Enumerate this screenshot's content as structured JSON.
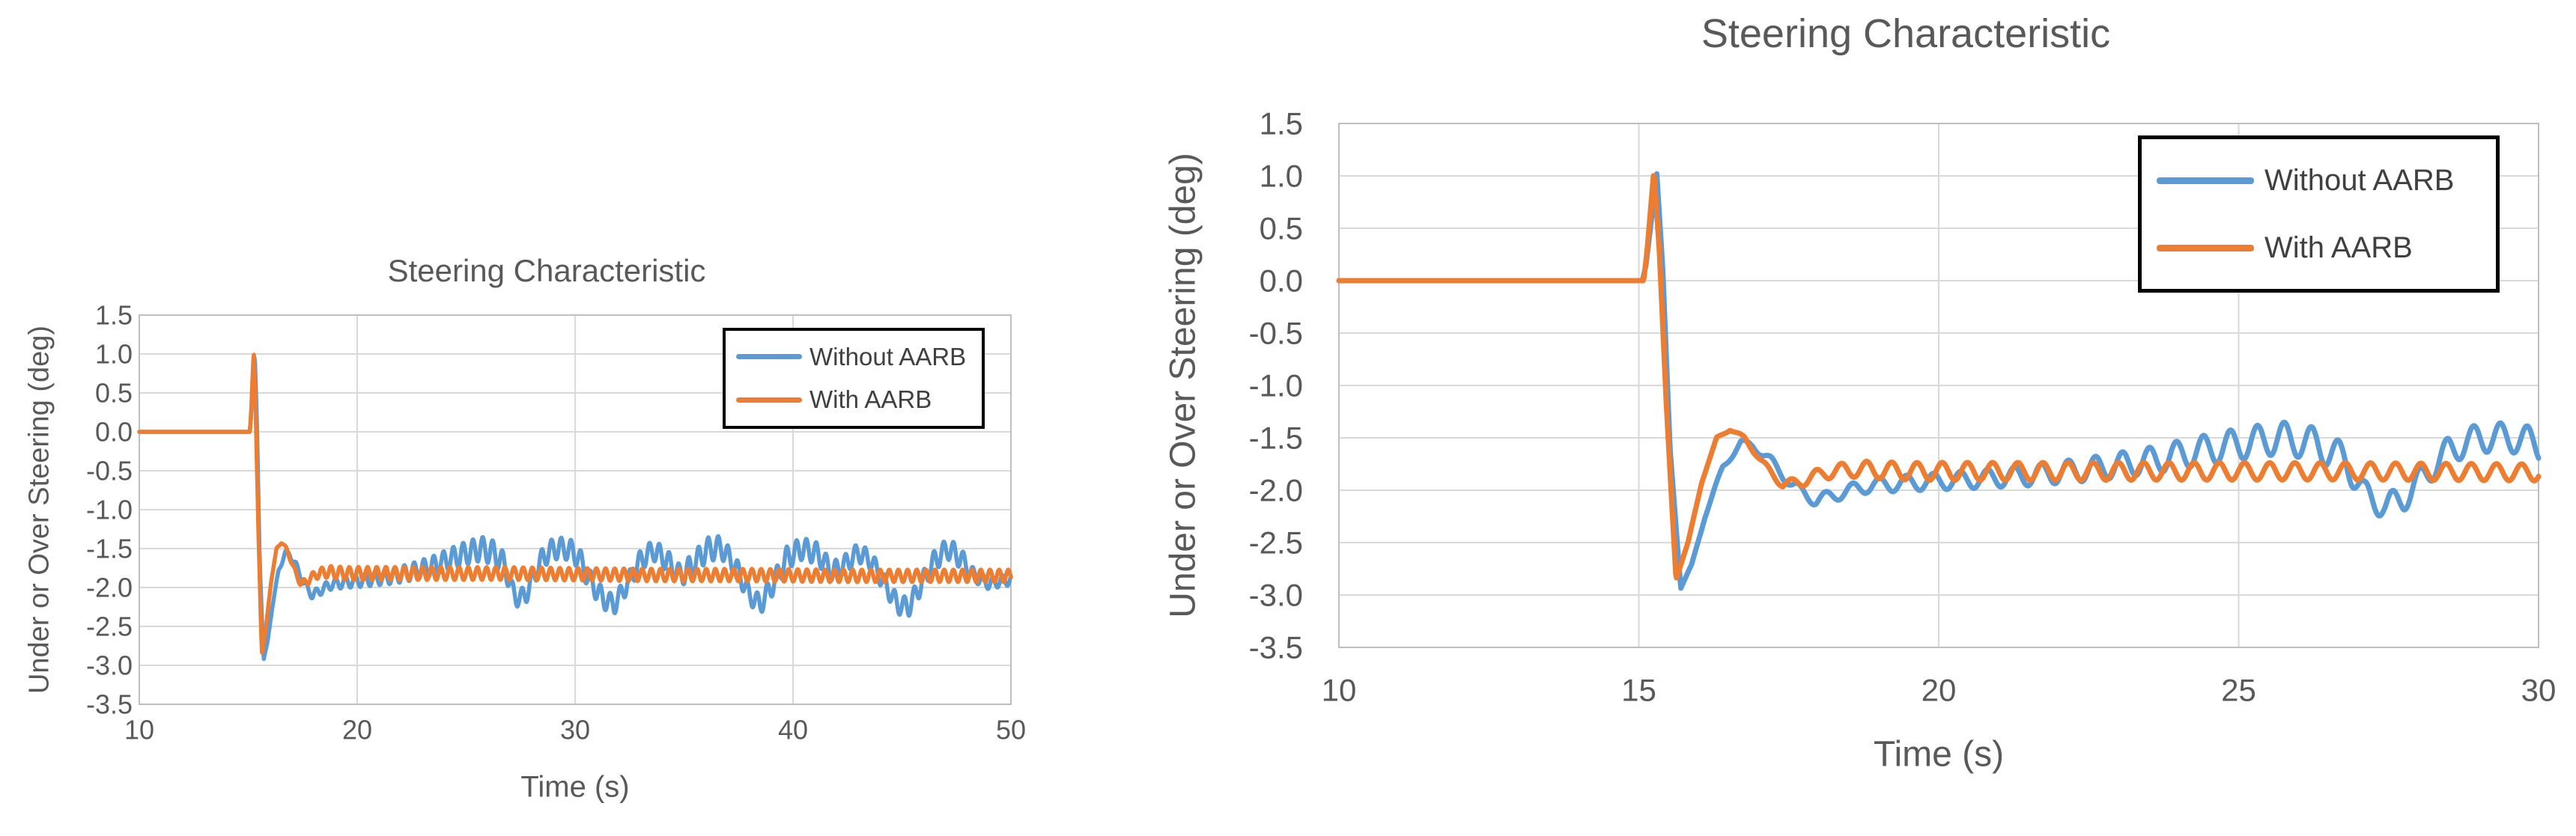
{
  "page": {
    "background": "#FFFFFF"
  },
  "colors": {
    "grid": "#D9D9D9",
    "plot_border": "#BFBFBF",
    "tick_text": "#595959",
    "title_text": "#595959",
    "legend_text": "#404040",
    "legend_border": "#000000",
    "series_blue": "#5B9BD5",
    "series_orange": "#ED7D31"
  },
  "chart_data": {
    "charts": [
      {
        "type": "line",
        "title": "Steering Characteristic",
        "xlabel": "Time (s)",
        "ylabel": "Under or Over Steering (deg)",
        "xlim": [
          10,
          50
        ],
        "ylim": [
          -3.5,
          1.5
        ],
        "xticks": [
          "10",
          "20",
          "30",
          "40",
          "50"
        ],
        "yticks": [
          "1.5",
          "1.0",
          "0.5",
          "0.0",
          "-0.5",
          "-1.0",
          "-1.5",
          "-2.0",
          "-2.5",
          "-3.0",
          "-3.5"
        ],
        "grid": true,
        "legend": {
          "position": "upper-right-inside",
          "entries": [
            "Without AARB",
            "With AARB"
          ]
        }
      },
      {
        "type": "line",
        "title": "Steering Characteristic",
        "xlabel": "Time (s)",
        "ylabel": "Under or Over Steering (deg)",
        "xlim": [
          10,
          30
        ],
        "ylim": [
          -3.5,
          1.5
        ],
        "xticks": [
          "10",
          "15",
          "20",
          "25",
          "30"
        ],
        "yticks": [
          "1.5",
          "1.0",
          "0.5",
          "0.0",
          "-0.5",
          "-1.0",
          "-1.5",
          "-2.0",
          "-2.5",
          "-3.0",
          "-3.5"
        ],
        "grid": true,
        "legend": {
          "position": "upper-right-inside",
          "entries": [
            "Without AARB",
            "With AARB"
          ]
        }
      }
    ],
    "series": [
      {
        "name": "Without AARB",
        "color": "#5B9BD5",
        "baseline": [
          [
            10,
            0
          ],
          [
            15.06,
            0
          ],
          [
            15.12,
            0.15
          ],
          [
            15.3,
            1.02
          ],
          [
            15.4,
            0.1
          ],
          [
            15.52,
            -1.6
          ],
          [
            15.7,
            -2.93
          ],
          [
            15.88,
            -2.72
          ],
          [
            16.1,
            -2.25
          ],
          [
            16.4,
            -1.78
          ],
          [
            16.7,
            -1.55
          ],
          [
            16.9,
            -1.57
          ],
          [
            17.2,
            -1.72
          ],
          [
            17.55,
            -1.95
          ],
          [
            17.95,
            -2.1
          ],
          [
            18.35,
            -2.03
          ],
          [
            18.8,
            -1.96
          ],
          [
            19.5,
            -1.93
          ],
          [
            20.5,
            -1.9
          ],
          [
            21.5,
            -1.86
          ],
          [
            22.5,
            -1.8
          ],
          [
            23.5,
            -1.72
          ],
          [
            24.3,
            -1.63
          ],
          [
            25.0,
            -1.56
          ],
          [
            25.7,
            -1.5
          ],
          [
            26.3,
            -1.56
          ],
          [
            26.8,
            -1.72
          ],
          [
            27.1,
            -2.05
          ],
          [
            27.45,
            -2.15
          ],
          [
            27.75,
            -2.08
          ],
          [
            28.1,
            -1.86
          ],
          [
            28.5,
            -1.62
          ],
          [
            29.0,
            -1.5
          ],
          [
            29.6,
            -1.5
          ],
          [
            30.1,
            -1.58
          ],
          [
            30.7,
            -1.92
          ],
          [
            31.3,
            -2.15
          ],
          [
            31.8,
            -2.22
          ],
          [
            32.4,
            -1.95
          ],
          [
            33.0,
            -1.65
          ],
          [
            33.6,
            -1.52
          ],
          [
            34.2,
            -1.65
          ],
          [
            34.8,
            -1.85
          ],
          [
            35.4,
            -1.72
          ],
          [
            36.0,
            -1.52
          ],
          [
            36.7,
            -1.48
          ],
          [
            37.4,
            -1.75
          ],
          [
            38.0,
            -2.1
          ],
          [
            38.5,
            -2.22
          ],
          [
            39.1,
            -1.95
          ],
          [
            39.7,
            -1.62
          ],
          [
            40.4,
            -1.5
          ],
          [
            41.1,
            -1.56
          ],
          [
            41.8,
            -1.8
          ],
          [
            42.4,
            -1.7
          ],
          [
            43.0,
            -1.55
          ],
          [
            43.6,
            -1.66
          ],
          [
            44.2,
            -1.95
          ],
          [
            44.8,
            -2.22
          ],
          [
            45.3,
            -2.25
          ],
          [
            45.9,
            -1.95
          ],
          [
            46.5,
            -1.65
          ],
          [
            47.1,
            -1.5
          ],
          [
            47.7,
            -1.62
          ],
          [
            48.3,
            -1.85
          ],
          [
            49.0,
            -1.95
          ],
          [
            49.5,
            -1.92
          ],
          [
            50.0,
            -1.9
          ]
        ],
        "ripple": {
          "period": 0.45,
          "phase": 0,
          "amplitude": [
            [
              10,
              0
            ],
            [
              15.4,
              0
            ],
            [
              16.2,
              0.02
            ],
            [
              17.5,
              0.05
            ],
            [
              19,
              0.07
            ],
            [
              21,
              0.09
            ],
            [
              23,
              0.12
            ],
            [
              25,
              0.15
            ],
            [
              26.5,
              0.16
            ],
            [
              27.5,
              0.12
            ],
            [
              28.5,
              0.13
            ],
            [
              30,
              0.15
            ],
            [
              32,
              0.12
            ],
            [
              34,
              0.14
            ],
            [
              36,
              0.16
            ],
            [
              38,
              0.12
            ],
            [
              40,
              0.15
            ],
            [
              42,
              0.13
            ],
            [
              44,
              0.12
            ],
            [
              46,
              0.13
            ],
            [
              47.5,
              0.14
            ],
            [
              48.5,
              0.08
            ],
            [
              50,
              0.07
            ]
          ]
        }
      },
      {
        "name": "With AARB",
        "color": "#ED7D31",
        "baseline": [
          [
            10,
            0
          ],
          [
            15.08,
            0
          ],
          [
            15.14,
            0.3
          ],
          [
            15.25,
            1.05
          ],
          [
            15.34,
            0.3
          ],
          [
            15.46,
            -1.2
          ],
          [
            15.62,
            -2.85
          ],
          [
            15.82,
            -2.5
          ],
          [
            16.05,
            -1.92
          ],
          [
            16.3,
            -1.5
          ],
          [
            16.52,
            -1.42
          ],
          [
            16.76,
            -1.5
          ],
          [
            17.05,
            -1.73
          ],
          [
            17.4,
            -1.95
          ],
          [
            17.75,
            -1.91
          ],
          [
            18.1,
            -1.83
          ],
          [
            18.6,
            -1.8
          ],
          [
            19.5,
            -1.82
          ],
          [
            21,
            -1.82
          ],
          [
            24,
            -1.82
          ],
          [
            27,
            -1.82
          ],
          [
            30,
            -1.83
          ],
          [
            34,
            -1.84
          ],
          [
            38,
            -1.84
          ],
          [
            42,
            -1.85
          ],
          [
            46,
            -1.85
          ],
          [
            50,
            -1.85
          ]
        ],
        "ripple": {
          "period": 0.42,
          "phase": 3.1,
          "amplitude": [
            [
              10,
              0
            ],
            [
              15.5,
              0
            ],
            [
              16.5,
              0.01
            ],
            [
              17.2,
              0.03
            ],
            [
              18,
              0.06
            ],
            [
              18.8,
              0.08
            ],
            [
              20,
              0.085
            ],
            [
              30,
              0.08
            ],
            [
              40,
              0.08
            ],
            [
              50,
              0.08
            ]
          ]
        }
      }
    ]
  }
}
